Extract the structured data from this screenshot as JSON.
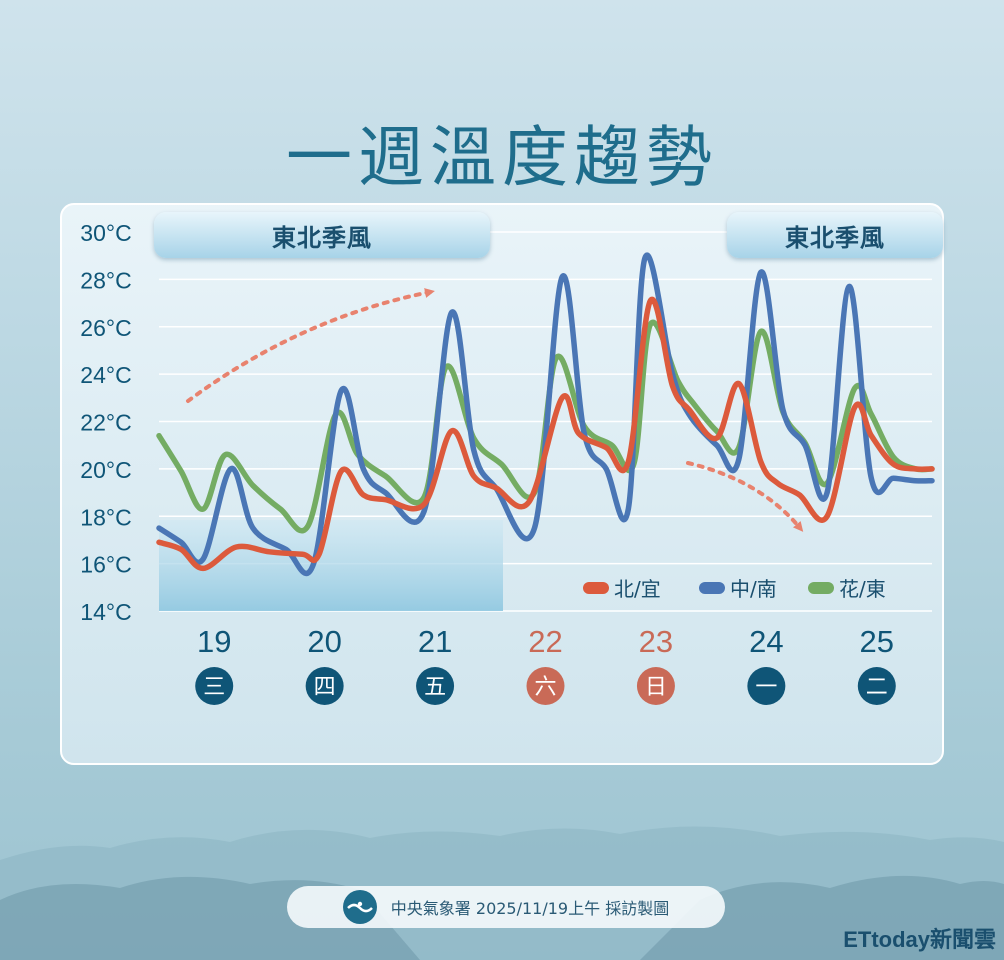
{
  "title": "一週溫度趨勢",
  "banners": [
    "東北季風",
    "東北季風"
  ],
  "source": "中央氣象署 2025/11/19上午 採訪製圖",
  "watermark": "ETtoday新聞雲",
  "colors": {
    "title": "#1f6d8c",
    "north": "#dc5a3c",
    "central_south": "#4a76b5",
    "east": "#74ac63",
    "weekday": "#0f5577",
    "weekend": "#c96a57",
    "arrow": "#e8826e"
  },
  "chart_data": {
    "type": "line",
    "ylim": [
      14,
      30
    ],
    "yticks": [
      "30°C",
      "28°C",
      "26°C",
      "24°C",
      "22°C",
      "20°C",
      "18°C",
      "16°C",
      "14°C"
    ],
    "ytick_values": [
      30,
      28,
      26,
      24,
      22,
      20,
      18,
      16,
      14
    ],
    "xlim": [
      18.5,
      25.5
    ],
    "days": [
      {
        "date": "19",
        "weekday": "三",
        "weekend": false
      },
      {
        "date": "20",
        "weekday": "四",
        "weekend": false
      },
      {
        "date": "21",
        "weekday": "五",
        "weekend": false
      },
      {
        "date": "22",
        "weekday": "六",
        "weekend": true
      },
      {
        "date": "23",
        "weekday": "日",
        "weekend": true
      },
      {
        "date": "24",
        "weekday": "一",
        "weekend": false
      },
      {
        "date": "25",
        "weekday": "二",
        "weekend": false
      }
    ],
    "series": [
      {
        "name": "北/宜",
        "color": "#dc5a3c",
        "x": [
          18.5,
          18.7,
          18.9,
          19.2,
          19.5,
          19.8,
          19.95,
          20.15,
          20.35,
          20.55,
          20.9,
          21.15,
          21.35,
          21.55,
          21.85,
          22.15,
          22.3,
          22.55,
          22.75,
          22.95,
          23.15,
          23.3,
          23.55,
          23.75,
          23.95,
          24.1,
          24.3,
          24.55,
          24.8,
          24.95,
          25.15,
          25.35,
          25.5
        ],
        "y": [
          16.9,
          16.6,
          15.8,
          16.7,
          16.5,
          16.4,
          16.4,
          19.9,
          18.9,
          18.7,
          18.5,
          21.6,
          19.7,
          19.2,
          18.6,
          23.0,
          21.5,
          20.9,
          20.3,
          27.1,
          23.5,
          22.5,
          21.3,
          23.6,
          20.3,
          19.4,
          18.9,
          18.0,
          22.6,
          21.4,
          20.2,
          20.0,
          20.0
        ]
      },
      {
        "name": "中/南",
        "color": "#4a76b5",
        "x": [
          18.5,
          18.7,
          18.9,
          19.15,
          19.35,
          19.65,
          19.9,
          20.15,
          20.35,
          20.55,
          20.9,
          21.15,
          21.35,
          21.55,
          21.9,
          22.15,
          22.35,
          22.55,
          22.75,
          22.9,
          23.15,
          23.3,
          23.55,
          23.75,
          23.95,
          24.15,
          24.35,
          24.55,
          24.75,
          24.95,
          25.15,
          25.35,
          25.5
        ],
        "y": [
          17.5,
          16.9,
          16.2,
          20.0,
          17.5,
          16.6,
          16.0,
          23.3,
          20.0,
          19.0,
          18.2,
          26.6,
          20.8,
          19.2,
          17.5,
          28.1,
          21.5,
          20.0,
          18.3,
          28.9,
          24.0,
          22.3,
          21.0,
          20.4,
          28.3,
          22.5,
          21.0,
          19.0,
          27.7,
          19.6,
          19.6,
          19.5,
          19.5
        ]
      },
      {
        "name": "花/東",
        "color": "#74ac63",
        "x": [
          18.5,
          18.7,
          18.9,
          19.1,
          19.35,
          19.6,
          19.85,
          20.1,
          20.3,
          20.55,
          20.9,
          21.1,
          21.35,
          21.6,
          21.9,
          22.1,
          22.35,
          22.6,
          22.8,
          22.95,
          23.2,
          23.35,
          23.55,
          23.75,
          23.95,
          24.15,
          24.35,
          24.55,
          24.8,
          24.95,
          25.15,
          25.35,
          25.5
        ],
        "y": [
          21.4,
          19.9,
          18.3,
          20.6,
          19.3,
          18.3,
          17.6,
          22.3,
          20.6,
          19.7,
          18.8,
          24.3,
          21.3,
          20.2,
          19.0,
          24.7,
          21.8,
          21.0,
          20.2,
          26.1,
          23.7,
          22.7,
          21.6,
          20.9,
          25.8,
          22.4,
          21.1,
          19.4,
          23.4,
          22.3,
          20.5,
          20.0,
          20.0
        ]
      }
    ],
    "legend": "bottom-right",
    "grid": true
  }
}
